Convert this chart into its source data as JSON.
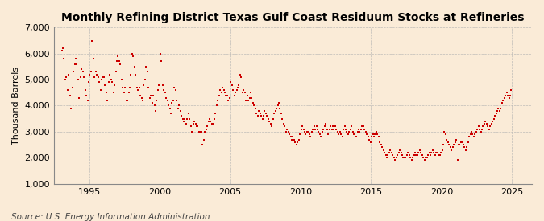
{
  "title": "Monthly Refining District Texas Gulf Coast Residuum Stocks at Refineries",
  "ylabel": "Thousand Barrels",
  "source": "Source: U.S. Energy Information Administration",
  "background_color": "#faebd7",
  "plot_background_color": "#faebd7",
  "dot_color": "#cc0000",
  "dot_size": 3,
  "ylim": [
    1000,
    7000
  ],
  "yticks": [
    1000,
    2000,
    3000,
    4000,
    5000,
    6000,
    7000
  ],
  "title_fontsize": 10,
  "label_fontsize": 8,
  "source_fontsize": 7.5,
  "monthly_data": [
    [
      1993,
      1,
      6100
    ],
    [
      1993,
      2,
      6200
    ],
    [
      1993,
      3,
      5800
    ],
    [
      1993,
      4,
      5000
    ],
    [
      1993,
      5,
      5100
    ],
    [
      1993,
      6,
      4600
    ],
    [
      1993,
      7,
      5200
    ],
    [
      1993,
      8,
      4400
    ],
    [
      1993,
      9,
      3900
    ],
    [
      1993,
      10,
      4700
    ],
    [
      1993,
      11,
      5300
    ],
    [
      1993,
      12,
      5600
    ],
    [
      1994,
      1,
      5800
    ],
    [
      1994,
      2,
      5600
    ],
    [
      1994,
      3,
      5000
    ],
    [
      1994,
      4,
      4300
    ],
    [
      1994,
      5,
      5100
    ],
    [
      1994,
      6,
      5400
    ],
    [
      1994,
      7,
      5300
    ],
    [
      1994,
      8,
      5100
    ],
    [
      1994,
      9,
      4600
    ],
    [
      1994,
      10,
      4400
    ],
    [
      1994,
      11,
      4200
    ],
    [
      1994,
      12,
      4900
    ],
    [
      1995,
      1,
      5200
    ],
    [
      1995,
      2,
      5300
    ],
    [
      1995,
      3,
      6500
    ],
    [
      1995,
      4,
      5800
    ],
    [
      1995,
      5,
      5100
    ],
    [
      1995,
      6,
      5300
    ],
    [
      1995,
      7,
      5200
    ],
    [
      1995,
      8,
      5100
    ],
    [
      1995,
      9,
      4900
    ],
    [
      1995,
      10,
      4600
    ],
    [
      1995,
      11,
      5000
    ],
    [
      1995,
      12,
      5100
    ],
    [
      1996,
      1,
      5100
    ],
    [
      1996,
      2,
      4800
    ],
    [
      1996,
      3,
      4500
    ],
    [
      1996,
      4,
      4200
    ],
    [
      1996,
      5,
      4900
    ],
    [
      1996,
      6,
      5200
    ],
    [
      1996,
      7,
      5000
    ],
    [
      1996,
      8,
      4900
    ],
    [
      1996,
      9,
      4500
    ],
    [
      1996,
      10,
      4800
    ],
    [
      1996,
      11,
      5300
    ],
    [
      1996,
      12,
      5700
    ],
    [
      1997,
      1,
      5900
    ],
    [
      1997,
      2,
      5700
    ],
    [
      1997,
      3,
      5600
    ],
    [
      1997,
      4,
      5000
    ],
    [
      1997,
      5,
      4700
    ],
    [
      1997,
      6,
      4500
    ],
    [
      1997,
      7,
      4700
    ],
    [
      1997,
      8,
      4200
    ],
    [
      1997,
      9,
      4200
    ],
    [
      1997,
      10,
      4500
    ],
    [
      1997,
      11,
      4700
    ],
    [
      1997,
      12,
      5200
    ],
    [
      1998,
      1,
      6000
    ],
    [
      1998,
      2,
      5900
    ],
    [
      1998,
      3,
      5500
    ],
    [
      1998,
      4,
      5200
    ],
    [
      1998,
      5,
      4700
    ],
    [
      1998,
      6,
      4600
    ],
    [
      1998,
      7,
      4700
    ],
    [
      1998,
      8,
      4400
    ],
    [
      1998,
      9,
      4300
    ],
    [
      1998,
      10,
      4200
    ],
    [
      1998,
      11,
      4800
    ],
    [
      1998,
      12,
      5000
    ],
    [
      1999,
      1,
      5500
    ],
    [
      1999,
      2,
      5300
    ],
    [
      1999,
      3,
      4700
    ],
    [
      1999,
      4,
      4300
    ],
    [
      1999,
      5,
      4400
    ],
    [
      1999,
      6,
      4100
    ],
    [
      1999,
      7,
      4400
    ],
    [
      1999,
      8,
      4000
    ],
    [
      1999,
      9,
      3800
    ],
    [
      1999,
      10,
      4200
    ],
    [
      1999,
      11,
      4600
    ],
    [
      1999,
      12,
      4800
    ],
    [
      2000,
      1,
      6000
    ],
    [
      2000,
      2,
      5700
    ],
    [
      2000,
      3,
      4800
    ],
    [
      2000,
      4,
      4600
    ],
    [
      2000,
      5,
      4500
    ],
    [
      2000,
      6,
      4300
    ],
    [
      2000,
      7,
      4200
    ],
    [
      2000,
      8,
      4000
    ],
    [
      2000,
      9,
      3900
    ],
    [
      2000,
      10,
      3700
    ],
    [
      2000,
      11,
      4100
    ],
    [
      2000,
      12,
      4200
    ],
    [
      2001,
      1,
      4700
    ],
    [
      2001,
      2,
      4600
    ],
    [
      2001,
      3,
      4200
    ],
    [
      2001,
      4,
      3900
    ],
    [
      2001,
      5,
      4000
    ],
    [
      2001,
      6,
      3800
    ],
    [
      2001,
      7,
      3600
    ],
    [
      2001,
      8,
      3500
    ],
    [
      2001,
      9,
      3400
    ],
    [
      2001,
      10,
      3500
    ],
    [
      2001,
      11,
      3300
    ],
    [
      2001,
      12,
      3500
    ],
    [
      2002,
      1,
      3700
    ],
    [
      2002,
      2,
      3500
    ],
    [
      2002,
      3,
      3200
    ],
    [
      2002,
      4,
      3000
    ],
    [
      2002,
      5,
      3300
    ],
    [
      2002,
      6,
      3400
    ],
    [
      2002,
      7,
      3300
    ],
    [
      2002,
      8,
      3200
    ],
    [
      2002,
      9,
      3200
    ],
    [
      2002,
      10,
      3000
    ],
    [
      2002,
      11,
      3000
    ],
    [
      2002,
      12,
      3000
    ],
    [
      2003,
      1,
      2500
    ],
    [
      2003,
      2,
      2700
    ],
    [
      2003,
      3,
      3000
    ],
    [
      2003,
      4,
      3100
    ],
    [
      2003,
      5,
      3200
    ],
    [
      2003,
      6,
      3400
    ],
    [
      2003,
      7,
      3500
    ],
    [
      2003,
      8,
      3400
    ],
    [
      2003,
      9,
      3300
    ],
    [
      2003,
      10,
      3300
    ],
    [
      2003,
      11,
      3500
    ],
    [
      2003,
      12,
      3700
    ],
    [
      2004,
      1,
      4000
    ],
    [
      2004,
      2,
      4200
    ],
    [
      2004,
      3,
      4400
    ],
    [
      2004,
      4,
      4600
    ],
    [
      2004,
      5,
      4500
    ],
    [
      2004,
      6,
      4700
    ],
    [
      2004,
      7,
      4600
    ],
    [
      2004,
      8,
      4500
    ],
    [
      2004,
      9,
      4400
    ],
    [
      2004,
      10,
      4400
    ],
    [
      2004,
      11,
      4200
    ],
    [
      2004,
      12,
      4300
    ],
    [
      2005,
      1,
      4900
    ],
    [
      2005,
      2,
      4800
    ],
    [
      2005,
      3,
      4600
    ],
    [
      2005,
      4,
      4400
    ],
    [
      2005,
      5,
      4500
    ],
    [
      2005,
      6,
      4600
    ],
    [
      2005,
      7,
      4700
    ],
    [
      2005,
      8,
      4800
    ],
    [
      2005,
      9,
      5200
    ],
    [
      2005,
      10,
      5100
    ],
    [
      2005,
      11,
      4500
    ],
    [
      2005,
      12,
      4600
    ],
    [
      2006,
      1,
      4500
    ],
    [
      2006,
      2,
      4200
    ],
    [
      2006,
      3,
      4400
    ],
    [
      2006,
      4,
      4200
    ],
    [
      2006,
      5,
      4300
    ],
    [
      2006,
      6,
      4500
    ],
    [
      2006,
      7,
      4300
    ],
    [
      2006,
      8,
      4100
    ],
    [
      2006,
      9,
      4000
    ],
    [
      2006,
      10,
      3900
    ],
    [
      2006,
      11,
      3700
    ],
    [
      2006,
      12,
      3600
    ],
    [
      2007,
      1,
      3800
    ],
    [
      2007,
      2,
      3700
    ],
    [
      2007,
      3,
      3600
    ],
    [
      2007,
      4,
      3500
    ],
    [
      2007,
      5,
      3600
    ],
    [
      2007,
      6,
      3800
    ],
    [
      2007,
      7,
      3700
    ],
    [
      2007,
      8,
      3600
    ],
    [
      2007,
      9,
      3500
    ],
    [
      2007,
      10,
      3400
    ],
    [
      2007,
      11,
      3300
    ],
    [
      2007,
      12,
      3200
    ],
    [
      2008,
      1,
      3500
    ],
    [
      2008,
      2,
      3700
    ],
    [
      2008,
      3,
      3800
    ],
    [
      2008,
      4,
      3900
    ],
    [
      2008,
      5,
      4000
    ],
    [
      2008,
      6,
      4100
    ],
    [
      2008,
      7,
      3900
    ],
    [
      2008,
      8,
      3700
    ],
    [
      2008,
      9,
      3500
    ],
    [
      2008,
      10,
      3300
    ],
    [
      2008,
      11,
      3200
    ],
    [
      2008,
      12,
      3000
    ],
    [
      2009,
      1,
      3100
    ],
    [
      2009,
      2,
      3000
    ],
    [
      2009,
      3,
      2900
    ],
    [
      2009,
      4,
      2800
    ],
    [
      2009,
      5,
      2700
    ],
    [
      2009,
      6,
      2800
    ],
    [
      2009,
      7,
      2700
    ],
    [
      2009,
      8,
      2600
    ],
    [
      2009,
      9,
      2500
    ],
    [
      2009,
      10,
      2600
    ],
    [
      2009,
      11,
      2700
    ],
    [
      2009,
      12,
      2900
    ],
    [
      2010,
      1,
      3100
    ],
    [
      2010,
      2,
      3200
    ],
    [
      2010,
      3,
      3100
    ],
    [
      2010,
      4,
      3000
    ],
    [
      2010,
      5,
      2900
    ],
    [
      2010,
      6,
      3000
    ],
    [
      2010,
      7,
      3000
    ],
    [
      2010,
      8,
      2900
    ],
    [
      2010,
      9,
      2800
    ],
    [
      2010,
      10,
      3000
    ],
    [
      2010,
      11,
      3100
    ],
    [
      2010,
      12,
      3200
    ],
    [
      2011,
      1,
      3100
    ],
    [
      2011,
      2,
      3200
    ],
    [
      2011,
      3,
      3100
    ],
    [
      2011,
      4,
      3000
    ],
    [
      2011,
      5,
      2900
    ],
    [
      2011,
      6,
      2800
    ],
    [
      2011,
      7,
      3000
    ],
    [
      2011,
      8,
      3100
    ],
    [
      2011,
      9,
      3200
    ],
    [
      2011,
      10,
      3300
    ],
    [
      2011,
      11,
      3100
    ],
    [
      2011,
      12,
      2900
    ],
    [
      2012,
      1,
      3100
    ],
    [
      2012,
      2,
      3200
    ],
    [
      2012,
      3,
      3100
    ],
    [
      2012,
      4,
      3200
    ],
    [
      2012,
      5,
      3100
    ],
    [
      2012,
      6,
      3200
    ],
    [
      2012,
      7,
      3100
    ],
    [
      2012,
      8,
      3000
    ],
    [
      2012,
      9,
      2900
    ],
    [
      2012,
      10,
      3000
    ],
    [
      2012,
      11,
      2900
    ],
    [
      2012,
      12,
      2800
    ],
    [
      2013,
      1,
      3100
    ],
    [
      2013,
      2,
      3200
    ],
    [
      2013,
      3,
      3100
    ],
    [
      2013,
      4,
      3000
    ],
    [
      2013,
      5,
      2900
    ],
    [
      2013,
      6,
      3000
    ],
    [
      2013,
      7,
      3100
    ],
    [
      2013,
      8,
      3200
    ],
    [
      2013,
      9,
      3000
    ],
    [
      2013,
      10,
      2900
    ],
    [
      2013,
      11,
      2800
    ],
    [
      2013,
      12,
      2800
    ],
    [
      2014,
      1,
      3000
    ],
    [
      2014,
      2,
      3100
    ],
    [
      2014,
      3,
      3000
    ],
    [
      2014,
      4,
      3100
    ],
    [
      2014,
      5,
      3200
    ],
    [
      2014,
      6,
      3200
    ],
    [
      2014,
      7,
      3100
    ],
    [
      2014,
      8,
      3000
    ],
    [
      2014,
      9,
      2900
    ],
    [
      2014,
      10,
      2800
    ],
    [
      2014,
      11,
      2700
    ],
    [
      2014,
      12,
      2600
    ],
    [
      2015,
      1,
      2800
    ],
    [
      2015,
      2,
      2900
    ],
    [
      2015,
      3,
      2800
    ],
    [
      2015,
      4,
      2900
    ],
    [
      2015,
      5,
      3000
    ],
    [
      2015,
      6,
      2900
    ],
    [
      2015,
      7,
      2800
    ],
    [
      2015,
      8,
      2600
    ],
    [
      2015,
      9,
      2500
    ],
    [
      2015,
      10,
      2400
    ],
    [
      2015,
      11,
      2300
    ],
    [
      2015,
      12,
      2200
    ],
    [
      2016,
      1,
      2100
    ],
    [
      2016,
      2,
      2000
    ],
    [
      2016,
      3,
      2100
    ],
    [
      2016,
      4,
      2200
    ],
    [
      2016,
      5,
      2300
    ],
    [
      2016,
      6,
      2200
    ],
    [
      2016,
      7,
      2100
    ],
    [
      2016,
      8,
      2000
    ],
    [
      2016,
      9,
      1900
    ],
    [
      2016,
      10,
      2000
    ],
    [
      2016,
      11,
      2100
    ],
    [
      2016,
      12,
      2200
    ],
    [
      2017,
      1,
      2300
    ],
    [
      2017,
      2,
      2200
    ],
    [
      2017,
      3,
      2100
    ],
    [
      2017,
      4,
      2000
    ],
    [
      2017,
      5,
      2000
    ],
    [
      2017,
      6,
      2000
    ],
    [
      2017,
      7,
      2100
    ],
    [
      2017,
      8,
      2200
    ],
    [
      2017,
      9,
      2100
    ],
    [
      2017,
      10,
      2000
    ],
    [
      2017,
      11,
      1900
    ],
    [
      2017,
      12,
      2000
    ],
    [
      2018,
      1,
      2100
    ],
    [
      2018,
      2,
      2200
    ],
    [
      2018,
      3,
      2100
    ],
    [
      2018,
      4,
      2100
    ],
    [
      2018,
      5,
      2200
    ],
    [
      2018,
      6,
      2300
    ],
    [
      2018,
      7,
      2200
    ],
    [
      2018,
      8,
      2100
    ],
    [
      2018,
      9,
      2000
    ],
    [
      2018,
      10,
      1900
    ],
    [
      2018,
      11,
      2000
    ],
    [
      2018,
      12,
      2000
    ],
    [
      2019,
      1,
      2100
    ],
    [
      2019,
      2,
      2200
    ],
    [
      2019,
      3,
      2100
    ],
    [
      2019,
      4,
      2200
    ],
    [
      2019,
      5,
      2300
    ],
    [
      2019,
      6,
      2200
    ],
    [
      2019,
      7,
      2100
    ],
    [
      2019,
      8,
      2200
    ],
    [
      2019,
      9,
      2200
    ],
    [
      2019,
      10,
      2100
    ],
    [
      2019,
      11,
      2100
    ],
    [
      2019,
      12,
      2200
    ],
    [
      2020,
      1,
      2300
    ],
    [
      2020,
      2,
      2500
    ],
    [
      2020,
      3,
      3000
    ],
    [
      2020,
      4,
      2900
    ],
    [
      2020,
      5,
      2700
    ],
    [
      2020,
      6,
      2600
    ],
    [
      2020,
      7,
      2500
    ],
    [
      2020,
      8,
      2400
    ],
    [
      2020,
      9,
      2300
    ],
    [
      2020,
      10,
      2400
    ],
    [
      2020,
      11,
      2500
    ],
    [
      2020,
      12,
      2600
    ],
    [
      2021,
      1,
      2700
    ],
    [
      2021,
      2,
      1900
    ],
    [
      2021,
      3,
      2500
    ],
    [
      2021,
      4,
      2500
    ],
    [
      2021,
      5,
      2600
    ],
    [
      2021,
      6,
      2600
    ],
    [
      2021,
      7,
      2500
    ],
    [
      2021,
      8,
      2400
    ],
    [
      2021,
      9,
      2300
    ],
    [
      2021,
      10,
      2400
    ],
    [
      2021,
      11,
      2600
    ],
    [
      2021,
      12,
      2800
    ],
    [
      2022,
      1,
      2900
    ],
    [
      2022,
      2,
      3000
    ],
    [
      2022,
      3,
      2900
    ],
    [
      2022,
      4,
      2800
    ],
    [
      2022,
      5,
      2900
    ],
    [
      2022,
      6,
      3000
    ],
    [
      2022,
      7,
      3100
    ],
    [
      2022,
      8,
      3200
    ],
    [
      2022,
      9,
      3100
    ],
    [
      2022,
      10,
      3000
    ],
    [
      2022,
      11,
      3100
    ],
    [
      2022,
      12,
      3200
    ],
    [
      2023,
      1,
      3300
    ],
    [
      2023,
      2,
      3400
    ],
    [
      2023,
      3,
      3300
    ],
    [
      2023,
      4,
      3200
    ],
    [
      2023,
      5,
      3100
    ],
    [
      2023,
      6,
      3200
    ],
    [
      2023,
      7,
      3300
    ],
    [
      2023,
      8,
      3400
    ],
    [
      2023,
      9,
      3500
    ],
    [
      2023,
      10,
      3600
    ],
    [
      2023,
      11,
      3700
    ],
    [
      2023,
      12,
      3800
    ],
    [
      2024,
      1,
      3900
    ],
    [
      2024,
      2,
      3800
    ],
    [
      2024,
      3,
      3900
    ],
    [
      2024,
      4,
      4100
    ],
    [
      2024,
      5,
      4200
    ],
    [
      2024,
      6,
      4300
    ],
    [
      2024,
      7,
      4400
    ],
    [
      2024,
      8,
      4500
    ],
    [
      2024,
      9,
      4400
    ],
    [
      2024,
      10,
      4300
    ],
    [
      2024,
      11,
      4400
    ],
    [
      2024,
      12,
      4600
    ]
  ]
}
